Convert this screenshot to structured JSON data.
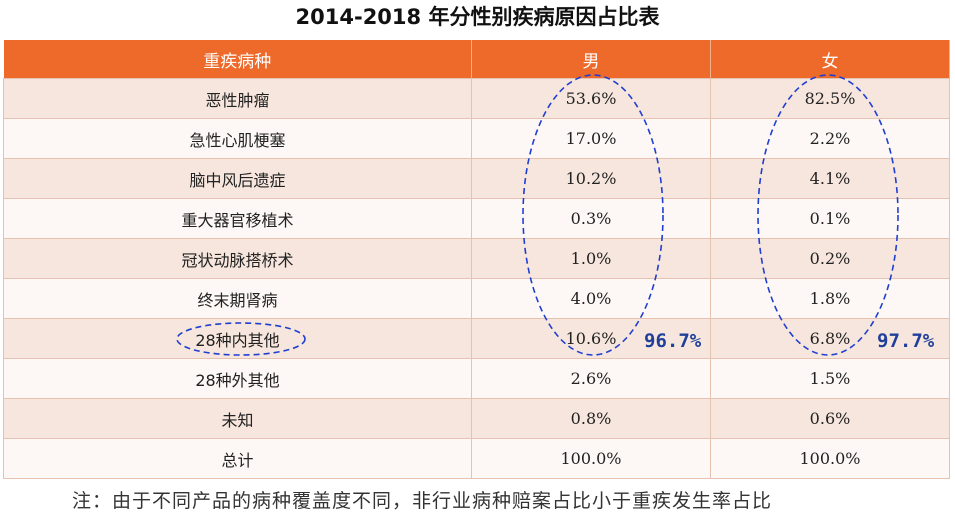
{
  "title": "2014-2018 年分性别疾病原因占比表",
  "table": {
    "headers": [
      "重疾病种",
      "男",
      "女"
    ],
    "rows": [
      {
        "name": "恶性肿瘤",
        "male": "53.6%",
        "female": "82.5%"
      },
      {
        "name": "急性心肌梗塞",
        "male": "17.0%",
        "female": "2.2%"
      },
      {
        "name": "脑中风后遗症",
        "male": "10.2%",
        "female": "4.1%"
      },
      {
        "name": "重大器官移植术",
        "male": "0.3%",
        "female": "0.1%"
      },
      {
        "name": "冠状动脉搭桥术",
        "male": "1.0%",
        "female": "0.2%"
      },
      {
        "name": "终末期肾病",
        "male": "4.0%",
        "female": "1.8%"
      },
      {
        "name": "28种内其他",
        "male": "10.6%",
        "female": "6.8%"
      },
      {
        "name": "28种外其他",
        "male": "2.6%",
        "female": "1.5%"
      },
      {
        "name": "未知",
        "male": "0.8%",
        "female": "0.6%"
      },
      {
        "name": "总计",
        "male": "100.0%",
        "female": "100.0%"
      }
    ]
  },
  "annotations": {
    "male_sum": "96.7%",
    "female_sum": "97.7%",
    "circle_color": "#1f3fd0"
  },
  "note": "注：由于不同产品的病种覆盖度不同，非行业病种赔案占比小于重疾发生率占比",
  "colors": {
    "header_bg": "#ee6a2b",
    "row_odd": "#f7e6dd",
    "row_even": "#fdf8f5"
  }
}
